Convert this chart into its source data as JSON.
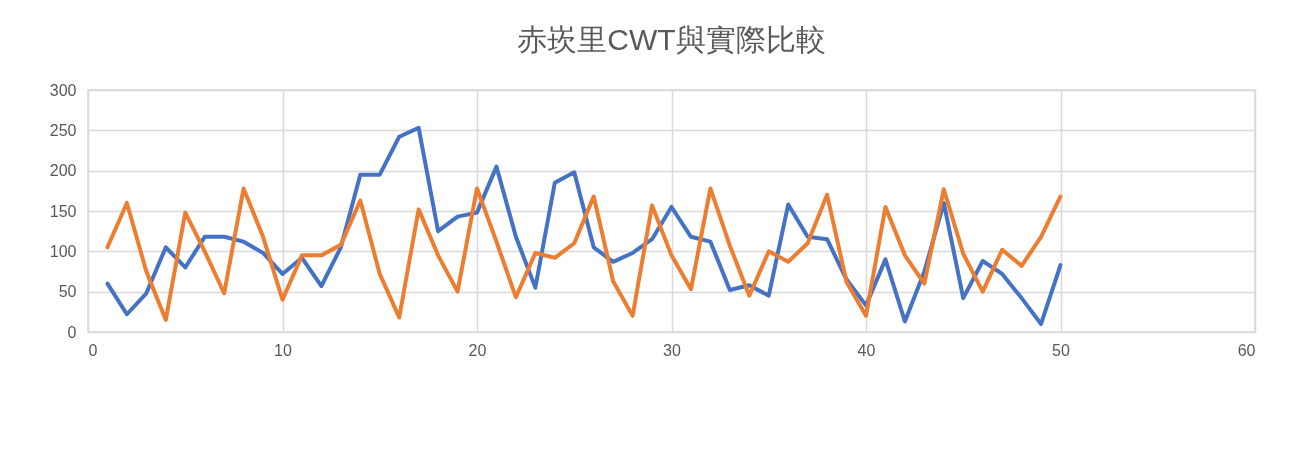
{
  "chart_data": {
    "type": "line",
    "title": "赤崁里CWT與實際比較",
    "x": [
      1,
      2,
      3,
      4,
      5,
      6,
      7,
      8,
      9,
      10,
      11,
      12,
      13,
      14,
      15,
      16,
      17,
      18,
      19,
      20,
      21,
      22,
      23,
      24,
      25,
      26,
      27,
      28,
      29,
      30,
      31,
      32,
      33,
      34,
      35,
      36,
      37,
      38,
      39,
      40,
      41,
      42,
      43,
      44,
      45,
      46,
      47,
      48,
      49,
      50
    ],
    "series": [
      {
        "color": "#4472c4",
        "values": [
          60,
          22,
          48,
          105,
          80,
          118,
          118,
          112,
          98,
          72,
          92,
          57,
          105,
          195,
          195,
          242,
          253,
          125,
          143,
          148,
          205,
          118,
          55,
          185,
          198,
          105,
          87,
          98,
          115,
          155,
          118,
          112,
          52,
          58,
          45,
          158,
          118,
          115,
          65,
          33,
          90,
          13,
          75,
          160,
          42,
          88,
          72,
          42,
          10,
          83
        ]
      },
      {
        "color": "#ed7d31",
        "values": [
          105,
          160,
          75,
          15,
          148,
          100,
          48,
          178,
          118,
          40,
          95,
          95,
          108,
          163,
          72,
          18,
          152,
          95,
          50,
          178,
          112,
          43,
          98,
          92,
          110,
          168,
          63,
          20,
          157,
          95,
          53,
          178,
          107,
          45,
          100,
          87,
          110,
          170,
          62,
          20,
          155,
          95,
          60,
          177,
          97,
          50,
          102,
          82,
          118,
          168
        ]
      }
    ],
    "xlim": [
      0,
      60
    ],
    "xticks": [
      0,
      10,
      20,
      30,
      40,
      50,
      60
    ],
    "ylim": [
      0,
      300
    ],
    "yticks": [
      0,
      50,
      100,
      150,
      200,
      250,
      300
    ],
    "grid": true,
    "legend": false,
    "marker": "none",
    "line_style": "solid"
  }
}
